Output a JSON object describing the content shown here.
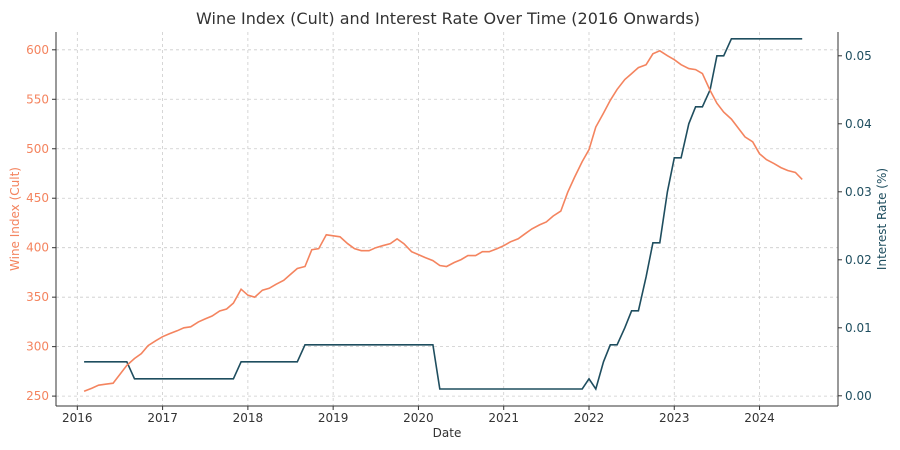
{
  "chart_data": {
    "type": "line",
    "title": "Wine Index (Cult) and Interest Rate Over Time (2016 Onwards)",
    "xlabel": "Date",
    "ylabel_left": "Wine Index (Cult)",
    "ylabel_right": "Interest Rate (%)",
    "xlim": [
      2015.75,
      2024.92
    ],
    "ylim_left": [
      240,
      618
    ],
    "ylim_right": [
      -0.0015,
      0.0535
    ],
    "x_ticks": [
      2016,
      2017,
      2018,
      2019,
      2020,
      2021,
      2022,
      2023,
      2024
    ],
    "x_tick_labels": [
      "2016",
      "2017",
      "2018",
      "2019",
      "2020",
      "2021",
      "2022",
      "2023",
      "2024"
    ],
    "y_ticks_left": [
      250,
      300,
      350,
      400,
      450,
      500,
      550,
      600
    ],
    "y_tick_labels_left": [
      "250",
      "300",
      "350",
      "400",
      "450",
      "500",
      "550",
      "600"
    ],
    "y_ticks_right": [
      0.0,
      0.01,
      0.02,
      0.03,
      0.04,
      0.05
    ],
    "y_tick_labels_right": [
      "0.00",
      "0.01",
      "0.02",
      "0.03",
      "0.04",
      "0.05"
    ],
    "grid": true,
    "colors": {
      "wine": "#f4845f",
      "rate": "#1f4e5f",
      "axis": "#333333"
    },
    "series": [
      {
        "axis": "left",
        "x": [
          2016.08,
          2016.17,
          2016.25,
          2016.33,
          2016.42,
          2016.5,
          2016.58,
          2016.67,
          2016.75,
          2016.83,
          2016.92,
          2017.0,
          2017.08,
          2017.17,
          2017.25,
          2017.33,
          2017.42,
          2017.5,
          2017.58,
          2017.67,
          2017.75,
          2017.83,
          2017.92,
          2018.0,
          2018.08,
          2018.17,
          2018.25,
          2018.33,
          2018.42,
          2018.5,
          2018.58,
          2018.67,
          2018.75,
          2018.83,
          2018.92,
          2019.0,
          2019.08,
          2019.17,
          2019.25,
          2019.33,
          2019.42,
          2019.5,
          2019.58,
          2019.67,
          2019.75,
          2019.83,
          2019.92,
          2020.0,
          2020.08,
          2020.17,
          2020.25,
          2020.33,
          2020.42,
          2020.5,
          2020.58,
          2020.67,
          2020.75,
          2020.83,
          2020.92,
          2021.0,
          2021.08,
          2021.17,
          2021.25,
          2021.33,
          2021.42,
          2021.5,
          2021.58,
          2021.67,
          2021.75,
          2021.83,
          2021.92,
          2022.0,
          2022.08,
          2022.17,
          2022.25,
          2022.33,
          2022.42,
          2022.5,
          2022.58,
          2022.67,
          2022.75,
          2022.83,
          2022.92,
          2023.0,
          2023.08,
          2023.17,
          2023.25,
          2023.33,
          2023.42,
          2023.5,
          2023.58,
          2023.67,
          2023.75,
          2023.83,
          2023.92,
          2024.0,
          2024.08,
          2024.17,
          2024.25,
          2024.33,
          2024.42,
          2024.5
        ],
        "values": [
          255,
          258,
          261,
          262,
          263,
          272,
          281,
          288,
          293,
          301,
          306,
          310,
          313,
          316,
          319,
          320,
          325,
          328,
          331,
          336,
          338,
          344,
          358,
          352,
          350,
          357,
          359,
          363,
          367,
          373,
          379,
          381,
          398,
          399,
          413,
          412,
          411,
          404,
          399,
          397,
          397,
          400,
          402,
          404,
          409,
          404,
          396,
          393,
          390,
          387,
          382,
          381,
          385,
          388,
          392,
          392,
          396,
          396,
          399,
          402,
          406,
          409,
          414,
          419,
          423,
          426,
          432,
          437,
          456,
          471,
          487,
          499,
          522,
          536,
          549,
          560,
          570,
          576,
          582,
          585,
          596,
          599,
          594,
          590,
          585,
          581,
          580,
          576,
          559,
          546,
          537,
          530,
          521,
          512,
          507,
          495,
          489,
          485,
          481,
          478,
          476,
          469
        ]
      },
      {
        "axis": "right",
        "x": [
          2016.08,
          2016.17,
          2016.25,
          2016.33,
          2016.42,
          2016.5,
          2016.58,
          2016.67,
          2016.75,
          2016.83,
          2016.92,
          2017.0,
          2017.08,
          2017.17,
          2017.25,
          2017.33,
          2017.42,
          2017.5,
          2017.58,
          2017.67,
          2017.75,
          2017.83,
          2017.92,
          2018.0,
          2018.08,
          2018.17,
          2018.25,
          2018.33,
          2018.42,
          2018.5,
          2018.58,
          2018.67,
          2018.75,
          2018.83,
          2018.92,
          2019.0,
          2019.08,
          2019.17,
          2019.25,
          2019.33,
          2019.42,
          2019.5,
          2019.58,
          2019.67,
          2019.75,
          2019.83,
          2019.92,
          2020.0,
          2020.08,
          2020.17,
          2020.25,
          2020.33,
          2020.42,
          2020.5,
          2020.58,
          2020.67,
          2020.75,
          2020.83,
          2020.92,
          2021.0,
          2021.08,
          2021.17,
          2021.25,
          2021.33,
          2021.42,
          2021.5,
          2021.58,
          2021.67,
          2021.75,
          2021.83,
          2021.92,
          2022.0,
          2022.08,
          2022.17,
          2022.25,
          2022.33,
          2022.42,
          2022.5,
          2022.58,
          2022.67,
          2022.75,
          2022.83,
          2022.92,
          2023.0,
          2023.08,
          2023.17,
          2023.25,
          2023.33,
          2023.42,
          2023.5,
          2023.58,
          2023.67,
          2023.75,
          2023.83,
          2023.92,
          2024.0,
          2024.08,
          2024.17,
          2024.25,
          2024.33,
          2024.42,
          2024.5
        ],
        "values": [
          0.005,
          0.005,
          0.005,
          0.005,
          0.005,
          0.005,
          0.005,
          0.0025,
          0.0025,
          0.0025,
          0.0025,
          0.0025,
          0.0025,
          0.0025,
          0.0025,
          0.0025,
          0.0025,
          0.0025,
          0.0025,
          0.0025,
          0.0025,
          0.0025,
          0.005,
          0.005,
          0.005,
          0.005,
          0.005,
          0.005,
          0.005,
          0.005,
          0.005,
          0.0075,
          0.0075,
          0.0075,
          0.0075,
          0.0075,
          0.0075,
          0.0075,
          0.0075,
          0.0075,
          0.0075,
          0.0075,
          0.0075,
          0.0075,
          0.0075,
          0.0075,
          0.0075,
          0.0075,
          0.0075,
          0.0075,
          0.001,
          0.001,
          0.001,
          0.001,
          0.001,
          0.001,
          0.001,
          0.001,
          0.001,
          0.001,
          0.001,
          0.001,
          0.001,
          0.001,
          0.001,
          0.001,
          0.001,
          0.001,
          0.001,
          0.001,
          0.001,
          0.0025,
          0.001,
          0.005,
          0.0075,
          0.0075,
          0.01,
          0.0125,
          0.0125,
          0.0175,
          0.0225,
          0.0225,
          0.03,
          0.035,
          0.035,
          0.04,
          0.0425,
          0.0425,
          0.045,
          0.05,
          0.05,
          0.0525,
          0.0525,
          0.0525,
          0.0525,
          0.0525,
          0.0525,
          0.0525,
          0.0525,
          0.0525,
          0.0525,
          0.0525
        ]
      }
    ]
  }
}
